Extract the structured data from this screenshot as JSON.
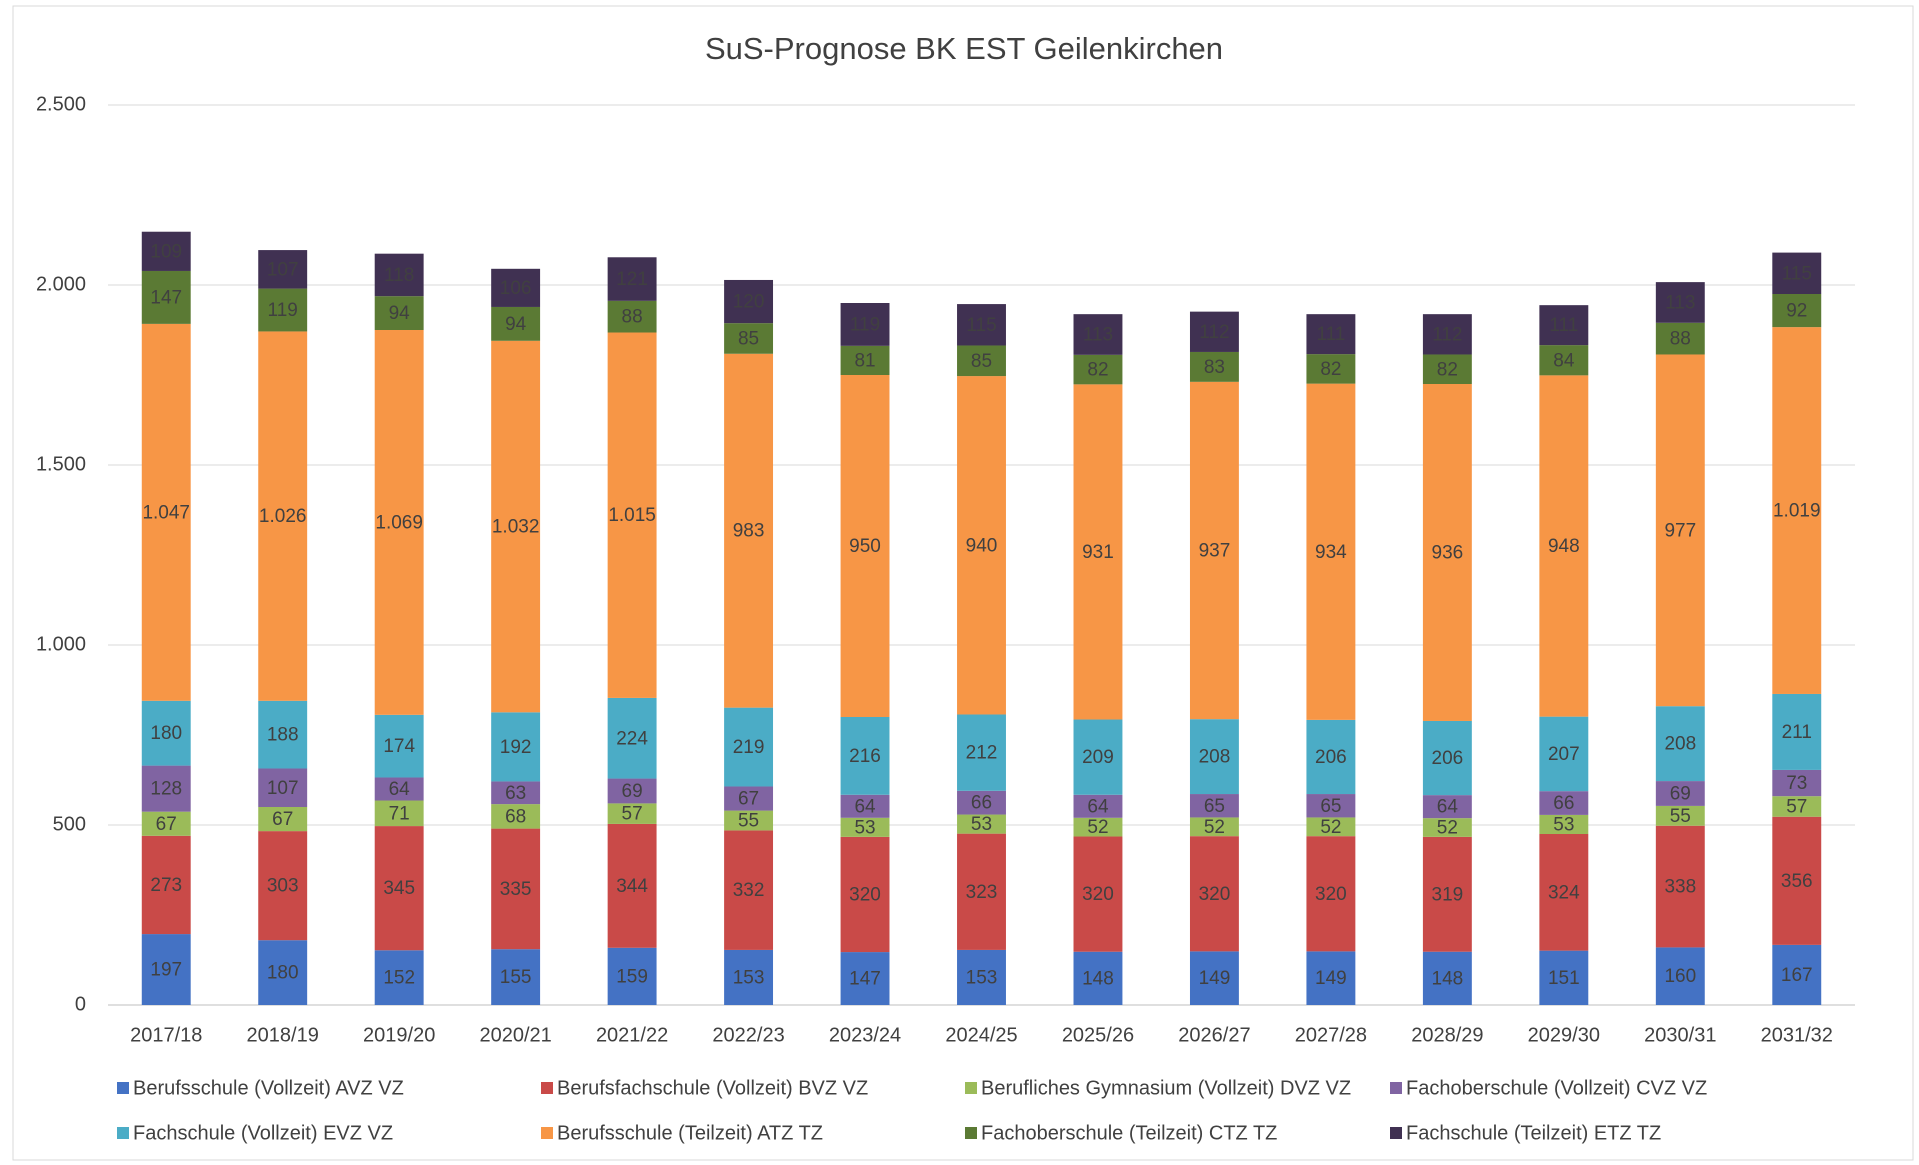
{
  "chart_data": {
    "type": "stacked_bar",
    "title": "SuS-Prognose BK EST Geilenkirchen",
    "categories": [
      "2017/18",
      "2018/19",
      "2019/20",
      "2020/21",
      "2021/22",
      "2022/23",
      "2023/24",
      "2024/25",
      "2025/26",
      "2026/27",
      "2027/28",
      "2028/29",
      "2029/30",
      "2030/31",
      "2031/32"
    ],
    "series": [
      {
        "name": "Berufsschule (Vollzeit) AVZ VZ",
        "color": "#4472c4",
        "values": [
          197,
          180,
          152,
          155,
          159,
          153,
          147,
          153,
          148,
          149,
          149,
          148,
          151,
          160,
          167
        ]
      },
      {
        "name": "Berufsfachschule (Vollzeit) BVZ VZ",
        "color": "#c94a48",
        "values": [
          273,
          303,
          345,
          335,
          344,
          332,
          320,
          323,
          320,
          320,
          320,
          319,
          324,
          338,
          356
        ]
      },
      {
        "name": "Berufliches Gymnasium (Vollzeit) DVZ VZ",
        "color": "#9bbb59",
        "values": [
          67,
          67,
          71,
          68,
          57,
          55,
          53,
          53,
          52,
          52,
          52,
          52,
          53,
          55,
          57
        ]
      },
      {
        "name": "Fachoberschule (Vollzeit) CVZ VZ",
        "color": "#8064a2",
        "values": [
          128,
          107,
          64,
          63,
          69,
          67,
          64,
          66,
          64,
          65,
          65,
          64,
          66,
          69,
          73
        ]
      },
      {
        "name": "Fachschule (Vollzeit) EVZ VZ",
        "color": "#4bacc6",
        "values": [
          180,
          188,
          174,
          192,
          224,
          219,
          216,
          212,
          209,
          208,
          206,
          206,
          207,
          208,
          211
        ]
      },
      {
        "name": "Berufsschule (Teilzeit) ATZ TZ",
        "color": "#f79646",
        "values": [
          1047,
          1026,
          1069,
          1032,
          1015,
          983,
          950,
          940,
          931,
          937,
          934,
          936,
          948,
          977,
          1019
        ],
        "value_labels": [
          "1.047",
          "1.026",
          "1.069",
          "1.032",
          "1.015",
          "983",
          "950",
          "940",
          "931",
          "937",
          "934",
          "936",
          "948",
          "977",
          "1.019"
        ]
      },
      {
        "name": "Fachoberschule (Teilzeit) CTZ TZ",
        "color": "#5b7a34",
        "values": [
          147,
          119,
          94,
          94,
          88,
          85,
          81,
          85,
          82,
          83,
          82,
          82,
          84,
          88,
          92
        ]
      },
      {
        "name": "Fachschule (Teilzeit) ETZ TZ",
        "color": "#403152",
        "values": [
          109,
          107,
          118,
          106,
          121,
          120,
          119,
          115,
          113,
          112,
          111,
          112,
          111,
          113,
          115
        ]
      }
    ],
    "ylim": [
      0,
      2500
    ],
    "yticks": [
      0,
      500,
      {
        "value": 1000,
        "label": "1.000"
      },
      {
        "value": 1500,
        "label": "1.500"
      },
      {
        "value": 2000,
        "label": "2.000"
      },
      {
        "value": 2500,
        "label": "2.500"
      }
    ],
    "grid": true,
    "legend": "bottom"
  }
}
